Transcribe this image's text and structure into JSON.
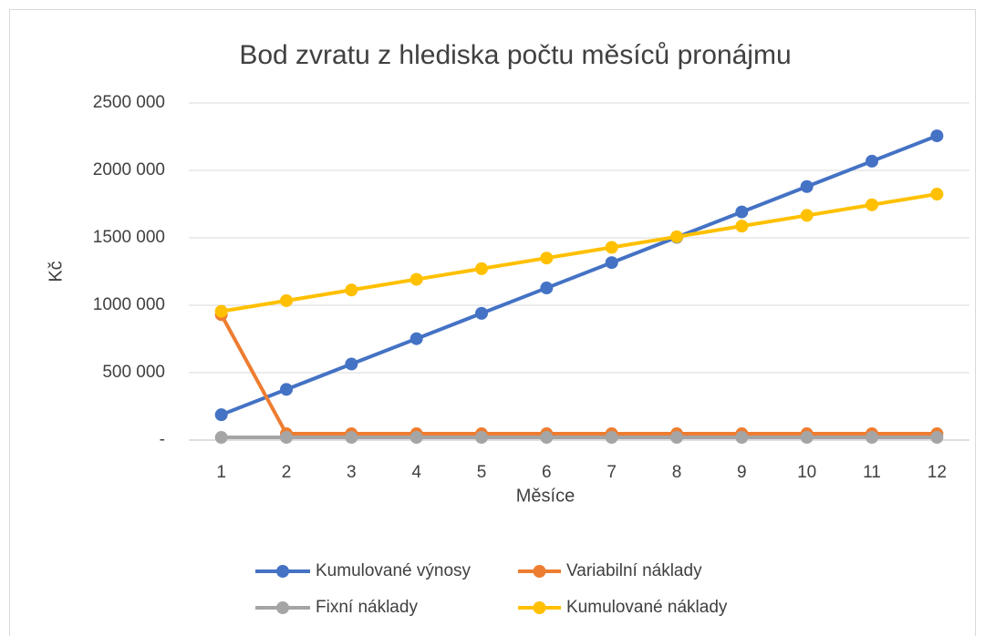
{
  "chart_data": {
    "type": "line",
    "title": "Bod zvratu z hlediska počtu měsíců pronájmu",
    "x_label": "Měsíce",
    "y_label": "Kč",
    "categories": [
      1,
      2,
      3,
      4,
      5,
      6,
      7,
      8,
      9,
      10,
      11,
      12
    ],
    "series": [
      {
        "name": "Kumulované výnosy",
        "color": "#4472c4",
        "values": [
          188000,
          376000,
          564000,
          752000,
          940000,
          1128000,
          1316000,
          1504000,
          1692000,
          1880000,
          2068000,
          2256000
        ]
      },
      {
        "name": "Variabilní náklady",
        "color": "#ed7d31",
        "values": [
          930000,
          47000,
          47000,
          47000,
          47000,
          47000,
          47000,
          47000,
          47000,
          47000,
          47000,
          47000
        ]
      },
      {
        "name": "Fixní náklady",
        "color": "#a5a5a5",
        "values": [
          20000,
          20000,
          20000,
          20000,
          20000,
          20000,
          20000,
          20000,
          20000,
          20000,
          20000,
          20000
        ]
      },
      {
        "name": "Kumulované náklady",
        "color": "#ffc000",
        "values": [
          955000,
          1034000,
          1113000,
          1192000,
          1271000,
          1350000,
          1429000,
          1508000,
          1587000,
          1666000,
          1745000,
          1824000
        ]
      }
    ],
    "ylim": [
      0,
      2500000
    ],
    "yticks": [
      {
        "value": 0,
        "label": "-"
      },
      {
        "value": 500000,
        "label": "500 000"
      },
      {
        "value": 1000000,
        "label": "1000 000"
      },
      {
        "value": 1500000,
        "label": "1500 000"
      },
      {
        "value": 2000000,
        "label": "2000 000"
      },
      {
        "value": 2500000,
        "label": "2500 000"
      }
    ],
    "grid": true,
    "legend": "bottom"
  }
}
